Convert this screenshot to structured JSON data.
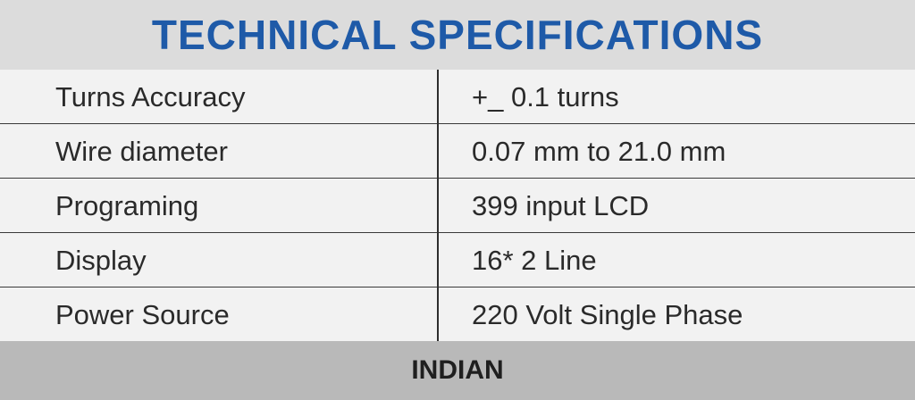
{
  "header": {
    "title": "TECHNICAL SPECIFICATIONS",
    "title_color": "#1e5aa8"
  },
  "specs": {
    "rows": [
      {
        "label": "Turns Accuracy",
        "value": "+_ 0.1 turns"
      },
      {
        "label": "Wire diameter",
        "value": "0.07 mm to 21.0 mm"
      },
      {
        "label": "Programing",
        "value": "399 input LCD"
      },
      {
        "label": "Display",
        "value": "16* 2 Line"
      },
      {
        "label": "Power Source",
        "value": "220 Volt Single Phase"
      }
    ]
  },
  "footer": {
    "text": "INDIAN"
  }
}
